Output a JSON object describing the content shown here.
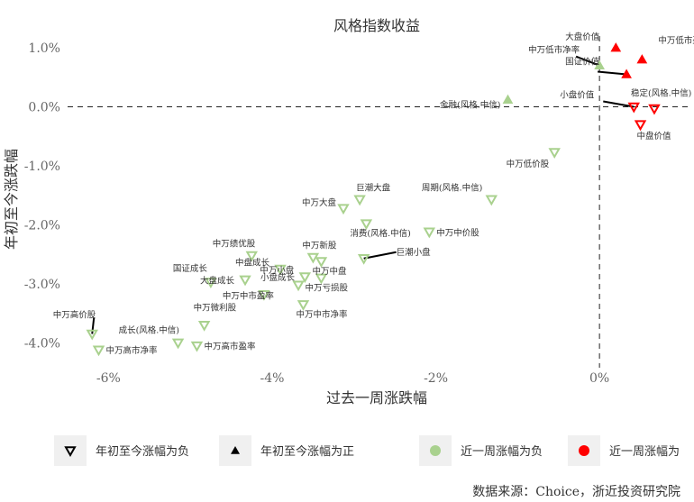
{
  "chart_data": {
    "type": "scatter",
    "title": "风格指数收益",
    "xlabel": "过去一周涨跌幅",
    "ylabel": "年初至今涨跌幅",
    "xlim": [
      -6.5,
      1.1
    ],
    "ylim": [
      -4.3,
      1.2
    ],
    "x_ticks": [
      "-6%",
      "-4%",
      "-2%",
      "0%"
    ],
    "y_ticks": [
      "1.0%",
      "0.0%",
      "-1.0%",
      "-2.0%",
      "-3.0%",
      "-4.0%"
    ],
    "reference_lines": {
      "x": 0,
      "y": 0,
      "style": "dashed"
    },
    "colors": {
      "week_negative": "#a9d18e",
      "week_positive": "#ff0000"
    },
    "points": [
      {
        "label": "大盘价值",
        "x": 0.2,
        "y": 1.0,
        "ytd": "positive",
        "week": "positive"
      },
      {
        "label": "中万低市净率",
        "x": 0.0,
        "y": 0.7,
        "ytd": "positive",
        "week": "negative"
      },
      {
        "label": "中万低市盈率",
        "x": 0.52,
        "y": 0.8,
        "ytd": "positive",
        "week": "positive"
      },
      {
        "label": "国证价值",
        "x": 0.33,
        "y": 0.55,
        "ytd": "positive",
        "week": "positive"
      },
      {
        "label": "小盘价值",
        "x": 0.42,
        "y": 0.0,
        "ytd": "negative",
        "week": "positive"
      },
      {
        "label": "稳定(风格.中信)",
        "x": 0.67,
        "y": -0.03,
        "ytd": "negative",
        "week": "positive"
      },
      {
        "label": "中盘价值",
        "x": 0.5,
        "y": -0.3,
        "ytd": "negative",
        "week": "positive"
      },
      {
        "label": "金融(风格.中信)",
        "x": -1.12,
        "y": 0.12,
        "ytd": "positive",
        "week": "negative"
      },
      {
        "label": "中万低价股",
        "x": -0.55,
        "y": -0.77,
        "ytd": "negative",
        "week": "negative"
      },
      {
        "label": "巨潮大盘",
        "x": -2.93,
        "y": -1.57,
        "ytd": "negative",
        "week": "negative"
      },
      {
        "label": "周期(风格.中信)",
        "x": -1.32,
        "y": -1.57,
        "ytd": "negative",
        "week": "negative"
      },
      {
        "label": "中万大盘",
        "x": -3.13,
        "y": -1.72,
        "ytd": "negative",
        "week": "negative"
      },
      {
        "label": "消费(风格.中信)",
        "x": -2.85,
        "y": -1.98,
        "ytd": "negative",
        "week": "negative"
      },
      {
        "label": "中万中价股",
        "x": -2.08,
        "y": -2.12,
        "ytd": "negative",
        "week": "negative"
      },
      {
        "label": "中万绩优股",
        "x": -4.25,
        "y": -2.52,
        "ytd": "negative",
        "week": "negative"
      },
      {
        "label": "中万新股",
        "x": -3.5,
        "y": -2.55,
        "ytd": "negative",
        "week": "negative"
      },
      {
        "label": "巨潮小盘",
        "x": -2.88,
        "y": -2.57,
        "ytd": "negative",
        "week": "negative"
      },
      {
        "label": "中万中盘",
        "x": -3.4,
        "y": -2.62,
        "ytd": "negative",
        "week": "negative"
      },
      {
        "label": "中盘成长",
        "x": -3.9,
        "y": -2.75,
        "ytd": "negative",
        "week": "negative"
      },
      {
        "label": "国证成长",
        "x": -4.75,
        "y": -2.97,
        "ytd": "negative",
        "week": "negative"
      },
      {
        "label": "中万小盘",
        "x": -3.6,
        "y": -2.88,
        "ytd": "negative",
        "week": "negative"
      },
      {
        "label": "中万亏损股",
        "x": -3.4,
        "y": -2.9,
        "ytd": "negative",
        "week": "negative"
      },
      {
        "label": "大盘成长",
        "x": -4.33,
        "y": -2.93,
        "ytd": "negative",
        "week": "negative"
      },
      {
        "label": "小盘成长",
        "x": -3.68,
        "y": -3.02,
        "ytd": "negative",
        "week": "negative"
      },
      {
        "label": "中万中市盈率",
        "x": -4.1,
        "y": -3.18,
        "ytd": "negative",
        "week": "negative"
      },
      {
        "label": "中万中市净率",
        "x": -3.62,
        "y": -3.35,
        "ytd": "negative",
        "week": "negative"
      },
      {
        "label": "中万微利股",
        "x": -4.83,
        "y": -3.7,
        "ytd": "negative",
        "week": "negative"
      },
      {
        "label": "中万高价股",
        "x": -6.2,
        "y": -3.85,
        "ytd": "negative",
        "week": "negative"
      },
      {
        "label": "成长(风格.中信)",
        "x": -5.15,
        "y": -4.0,
        "ytd": "negative",
        "week": "negative"
      },
      {
        "label": "中万高市净率",
        "x": -6.12,
        "y": -4.12,
        "ytd": "negative",
        "week": "negative"
      },
      {
        "label": "中万高市盈率",
        "x": -4.92,
        "y": -4.05,
        "ytd": "negative",
        "week": "negative"
      }
    ],
    "legend": {
      "placement": "bottom",
      "items": [
        {
          "label": "年初至今涨幅为负",
          "marker": "triangle-down-open"
        },
        {
          "label": "年初至今涨幅为正",
          "marker": "triangle-up"
        },
        {
          "label": "近一周涨幅为负",
          "marker": "circle",
          "color": "#a9d18e"
        },
        {
          "label": "近一周涨幅为",
          "marker": "circle",
          "color": "#ff0000"
        }
      ]
    }
  },
  "source": "数据来源：Choice，浙近投资研究院"
}
